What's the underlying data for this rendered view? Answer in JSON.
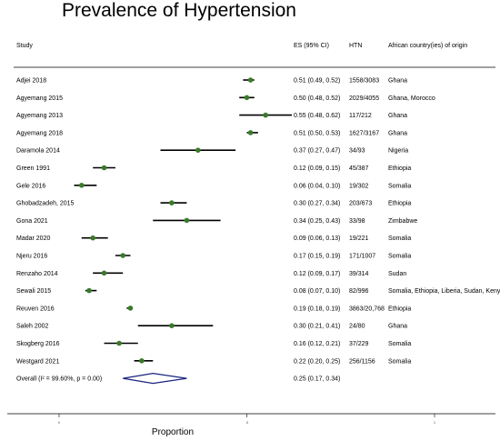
{
  "chart_data": {
    "type": "forest",
    "title": "Prevalence of Hypertension",
    "xlabel": "Proportion",
    "xlim": [
      0,
      1
    ],
    "x_ticks": [
      {
        "value": 0,
        "label": "0"
      },
      {
        "value": 0.5,
        "label": ".5"
      },
      {
        "value": 1,
        "label": "1"
      }
    ],
    "headers": {
      "study": "Study",
      "es": "ES (95% CI)",
      "htn": "HTN",
      "country": "African country(ies) of origin"
    },
    "studies": [
      {
        "study": "Adjei 2018",
        "es": 0.51,
        "lo": 0.49,
        "hi": 0.52,
        "es_text": "0.51 (0.49, 0.52)",
        "htn": "1558/3083",
        "country": "Ghana"
      },
      {
        "study": "Agyemang 2015",
        "es": 0.5,
        "lo": 0.48,
        "hi": 0.52,
        "es_text": "0.50 (0.48, 0.52)",
        "htn": "2029/4055",
        "country": "Ghana, Morocco"
      },
      {
        "study": "Agyemang 2013",
        "es": 0.55,
        "lo": 0.48,
        "hi": 0.62,
        "es_text": "0.55 (0.48, 0.62)",
        "htn": "117/212",
        "country": "Ghana"
      },
      {
        "study": "Agyemang 2018",
        "es": 0.51,
        "lo": 0.5,
        "hi": 0.53,
        "es_text": "0.51 (0.50, 0.53)",
        "htn": "1627/3167",
        "country": "Ghana"
      },
      {
        "study": "Daramola 2014",
        "es": 0.37,
        "lo": 0.27,
        "hi": 0.47,
        "es_text": "0.37 (0.27, 0.47)",
        "htn": "34/93",
        "country": "Nigeria"
      },
      {
        "study": "Green 1991",
        "es": 0.12,
        "lo": 0.09,
        "hi": 0.15,
        "es_text": "0.12 (0.09, 0.15)",
        "htn": "45/387",
        "country": "Ethiopia"
      },
      {
        "study": "Gele 2016",
        "es": 0.06,
        "lo": 0.04,
        "hi": 0.1,
        "es_text": "0.06 (0.04, 0.10)",
        "htn": "19/302",
        "country": "Somalia"
      },
      {
        "study": "Ghobadzadeh, 2015",
        "es": 0.3,
        "lo": 0.27,
        "hi": 0.34,
        "es_text": "0.30 (0.27, 0.34)",
        "htn": "203/673",
        "country": "Ethiopia"
      },
      {
        "study": "Gona 2021",
        "es": 0.34,
        "lo": 0.25,
        "hi": 0.43,
        "es_text": "0.34 (0.25, 0.43)",
        "htn": "33/98",
        "country": "Zimbabwe"
      },
      {
        "study": "Madar 2020",
        "es": 0.09,
        "lo": 0.06,
        "hi": 0.13,
        "es_text": "0.09 (0.06, 0.13)",
        "htn": "19/221",
        "country": "Somalia"
      },
      {
        "study": "Njeru 2016",
        "es": 0.17,
        "lo": 0.15,
        "hi": 0.19,
        "es_text": "0.17 (0.15, 0.19)",
        "htn": "171/1007",
        "country": "Somalia"
      },
      {
        "study": "Renzaho 2014",
        "es": 0.12,
        "lo": 0.09,
        "hi": 0.17,
        "es_text": "0.12 (0.09, 0.17)",
        "htn": "39/314",
        "country": "Sudan"
      },
      {
        "study": "Sewali 2015",
        "es": 0.08,
        "lo": 0.07,
        "hi": 0.1,
        "es_text": "0.08 (0.07, 0.10)",
        "htn": "82/996",
        "country": "Somalia, Ethiopia, Liberia, Sudan, Kenya"
      },
      {
        "study": "Reuven 2016",
        "es": 0.19,
        "lo": 0.18,
        "hi": 0.19,
        "es_text": "0.19 (0.18, 0.19)",
        "htn": "3863/20,768",
        "country": "Ethiopia"
      },
      {
        "study": "Saleh 2002",
        "es": 0.3,
        "lo": 0.21,
        "hi": 0.41,
        "es_text": "0.30 (0.21, 0.41)",
        "htn": "24/80",
        "country": "Ghana"
      },
      {
        "study": "Skogberg 2016",
        "es": 0.16,
        "lo": 0.12,
        "hi": 0.21,
        "es_text": "0.16 (0.12, 0.21)",
        "htn": "37/229",
        "country": "Somalia"
      },
      {
        "study": "Westgard 2021",
        "es": 0.22,
        "lo": 0.2,
        "hi": 0.25,
        "es_text": "0.22 (0.20, 0.25)",
        "htn": "256/1156",
        "country": "Somalia"
      }
    ],
    "overall": {
      "label": "Overall  (I² = 99.60%, p = 0.00)",
      "es": 0.25,
      "lo": 0.17,
      "hi": 0.34,
      "es_text": "0.25 (0.17, 0.34)"
    },
    "colors": {
      "point": "#3a7a2a",
      "ci_line": "#000000",
      "diamond": "#1a237e"
    }
  }
}
